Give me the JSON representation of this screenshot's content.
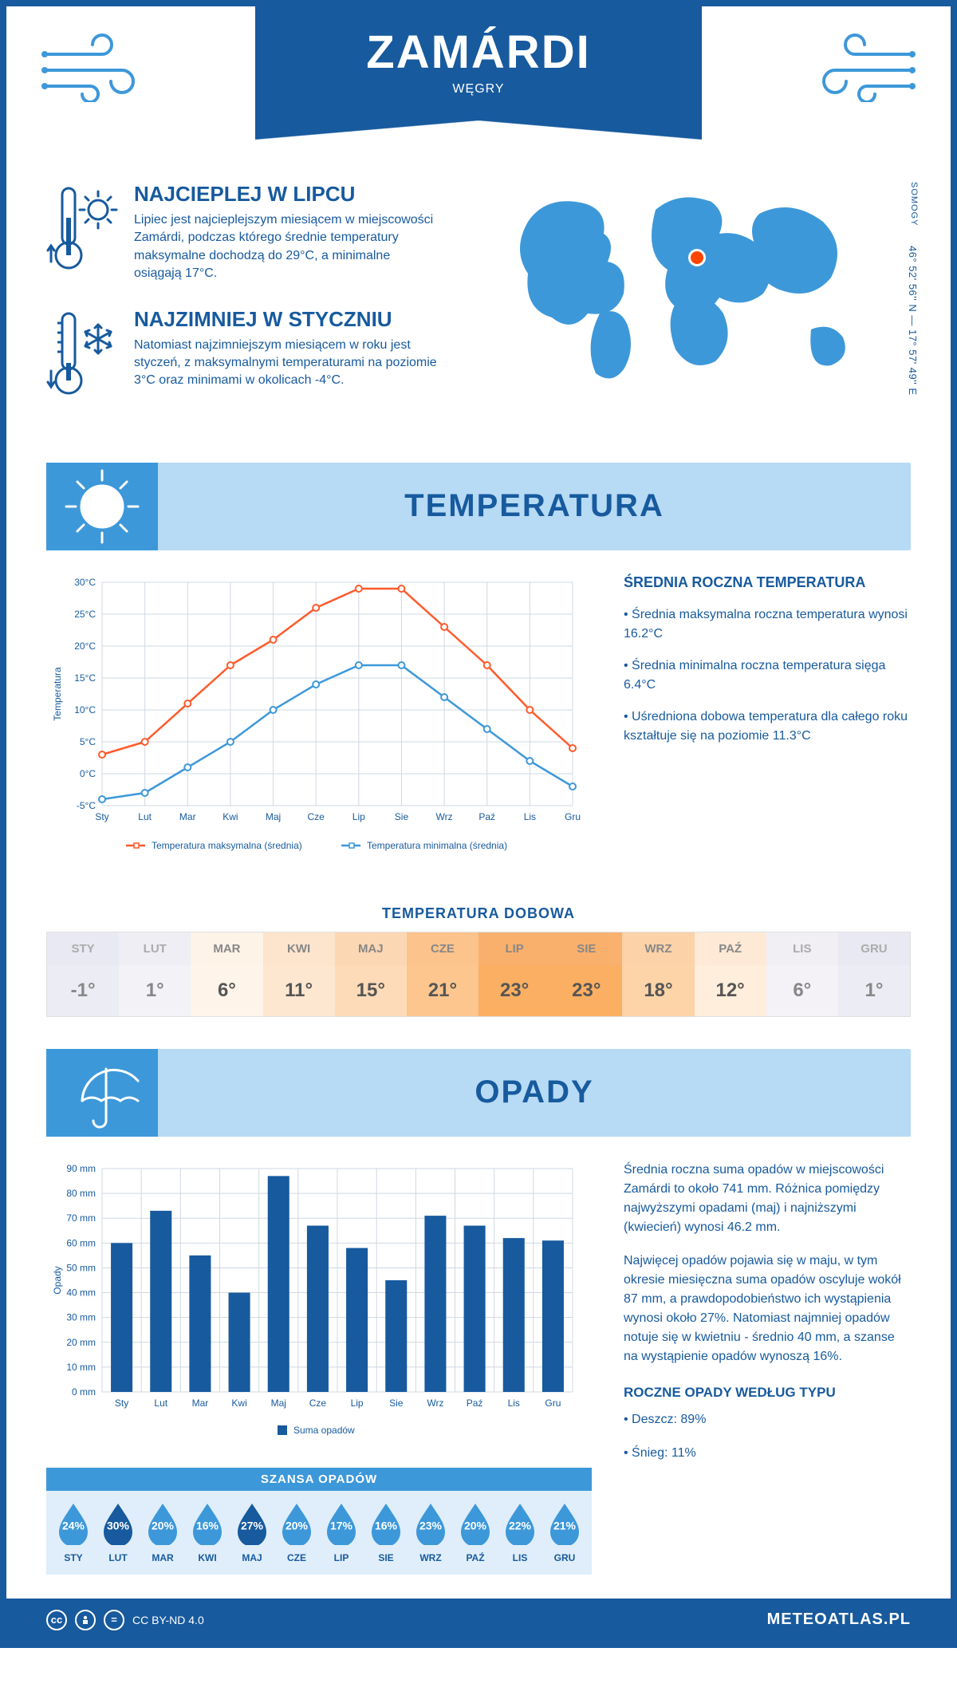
{
  "header": {
    "city": "ZAMÁRDI",
    "country": "WĘGRY"
  },
  "map": {
    "region": "SOMOGY",
    "coords": "46° 52' 56'' N — 17° 57' 49'' E",
    "marker_color": "#ff4500",
    "land_color": "#3d98d9"
  },
  "intro": {
    "hot": {
      "title": "NAJCIEPLEJ W LIPCU",
      "text": "Lipiec jest najcieplejszym miesiącem w miejscowości Zamárdi, podczas którego średnie temperatury maksymalne dochodzą do 29°C, a minimalne osiągają 17°C."
    },
    "cold": {
      "title": "NAJZIMNIEJ W STYCZNIU",
      "text": "Natomiast najzimniejszym miesiącem w roku jest styczeń, z maksymalnymi temperaturami na poziomie 3°C oraz minimami w okolicach -4°C."
    }
  },
  "sections": {
    "temp_title": "TEMPERATURA",
    "precip_title": "OPADY"
  },
  "months": [
    "Sty",
    "Lut",
    "Mar",
    "Kwi",
    "Maj",
    "Cze",
    "Lip",
    "Sie",
    "Wrz",
    "Paź",
    "Lis",
    "Gru"
  ],
  "temp_chart": {
    "type": "line",
    "ylabel": "Temperatura",
    "ylim": [
      -5,
      30
    ],
    "ytick_step": 5,
    "ytick_labels": [
      "-5°C",
      "0°C",
      "5°C",
      "10°C",
      "15°C",
      "20°C",
      "25°C",
      "30°C"
    ],
    "grid_color": "#cfd8e3",
    "series": [
      {
        "name": "Temperatura maksymalna (średnia)",
        "color": "#ff5a2c",
        "values": [
          3,
          5,
          11,
          17,
          21,
          26,
          29,
          29,
          23,
          17,
          10,
          4
        ]
      },
      {
        "name": "Temperatura minimalna (średnia)",
        "color": "#3d98d9",
        "values": [
          -4,
          -3,
          1,
          5,
          10,
          14,
          17,
          17,
          12,
          7,
          2,
          -2
        ]
      }
    ]
  },
  "temp_info": {
    "title": "ŚREDNIA ROCZNA TEMPERATURA",
    "bullets": [
      "Średnia maksymalna roczna temperatura wynosi 16.2°C",
      "Średnia minimalna roczna temperatura sięga 6.4°C",
      "Uśredniona dobowa temperatura dla całego roku kształtuje się na poziomie 11.3°C"
    ]
  },
  "daily_temp": {
    "title": "TEMPERATURA DOBOWA",
    "months": [
      "STY",
      "LUT",
      "MAR",
      "KWI",
      "MAJ",
      "CZE",
      "LIP",
      "SIE",
      "WRZ",
      "PAŹ",
      "LIS",
      "GRU"
    ],
    "values": [
      "-1°",
      "1°",
      "6°",
      "11°",
      "15°",
      "21°",
      "23°",
      "23°",
      "18°",
      "12°",
      "6°",
      "1°"
    ],
    "header_colors": [
      "#e0e0f0",
      "#e8e8f0",
      "#fdeede",
      "#fdd9b8",
      "#fcc795",
      "#fbab5c",
      "#f99030",
      "#f99030",
      "#fcbf84",
      "#fde1c4",
      "#ece8f0",
      "#e0e0f0"
    ],
    "value_colors": [
      "#ececf5",
      "#f2f2f7",
      "#fef4e9",
      "#fee7d1",
      "#fddbb8",
      "#fcc68e",
      "#fbaf62",
      "#fbaf62",
      "#fdd4a8",
      "#feeedb",
      "#f4f2f7",
      "#ececf5"
    ],
    "text_colors": [
      "#888",
      "#888",
      "#555",
      "#555",
      "#555",
      "#555",
      "#555",
      "#555",
      "#555",
      "#555",
      "#888",
      "#888"
    ]
  },
  "precip_chart": {
    "type": "bar",
    "ylabel": "Opady",
    "ylim": [
      0,
      90
    ],
    "ytick_step": 10,
    "ytick_labels": [
      "0 mm",
      "10 mm",
      "20 mm",
      "30 mm",
      "40 mm",
      "50 mm",
      "60 mm",
      "70 mm",
      "80 mm",
      "90 mm"
    ],
    "bar_color": "#175a9e",
    "grid_color": "#cfd8e3",
    "legend": "Suma opadów",
    "values": [
      60,
      73,
      55,
      40,
      87,
      67,
      58,
      45,
      71,
      67,
      62,
      61
    ]
  },
  "precip_info": {
    "para1": "Średnia roczna suma opadów w miejscowości Zamárdi to około 741 mm. Różnica pomiędzy najwyższymi opadami (maj) i najniższymi (kwiecień) wynosi 46.2 mm.",
    "para2": "Najwięcej opadów pojawia się w maju, w tym okresie miesięczna suma opadów oscyluje wokół 87 mm, a prawdopodobieństwo ich wystąpienia wynosi około 27%. Natomiast najmniej opadów notuje się w kwietniu - średnio 40 mm, a szanse na wystąpienie opadów wynoszą 16%.",
    "by_type_title": "ROCZNE OPADY WEDŁUG TYPU",
    "by_type": [
      "Deszcz: 89%",
      "Śnieg: 11%"
    ]
  },
  "chance": {
    "title": "SZANSA OPADÓW",
    "months": [
      "STY",
      "LUT",
      "MAR",
      "KWI",
      "MAJ",
      "CZE",
      "LIP",
      "SIE",
      "WRZ",
      "PAŹ",
      "LIS",
      "GRU"
    ],
    "values": [
      "24%",
      "30%",
      "20%",
      "16%",
      "27%",
      "20%",
      "17%",
      "16%",
      "23%",
      "20%",
      "22%",
      "21%"
    ],
    "fills": [
      "#3d98d9",
      "#175a9e",
      "#3d98d9",
      "#3d98d9",
      "#175a9e",
      "#3d98d9",
      "#3d98d9",
      "#3d98d9",
      "#3d98d9",
      "#3d98d9",
      "#3d98d9",
      "#3d98d9"
    ]
  },
  "footer": {
    "license": "CC BY-ND 4.0",
    "site": "METEOATLAS.PL"
  },
  "palette": {
    "primary": "#175a9e",
    "secondary": "#3d98d9",
    "header_bg": "#b7daf5",
    "chance_bg": "#dfeefa"
  }
}
